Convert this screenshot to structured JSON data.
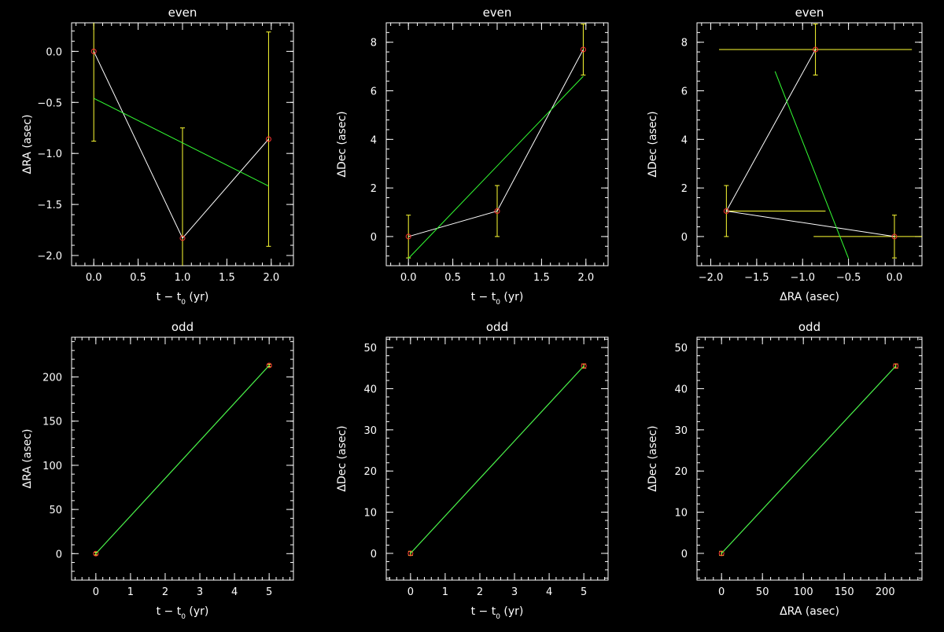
{
  "chart_data": [
    {
      "type": "line",
      "title": "even",
      "xlabel": "t − t0 (yr)",
      "ylabel": "ΔRA (asec)",
      "xlim": [
        -0.25,
        2.25
      ],
      "ylim": [
        -2.1,
        0.28
      ],
      "xticks": [
        0.0,
        0.5,
        1.0,
        1.5,
        2.0
      ],
      "xticklabels": [
        "0.0",
        "0.5",
        "1.0",
        "1.5",
        "2.0"
      ],
      "yticks": [
        0.0,
        -0.5,
        -1.0,
        -1.5,
        -2.0
      ],
      "yticklabels": [
        "0.0",
        "−0.5",
        "−1.0",
        "−1.5",
        "−2.0"
      ],
      "grid": false,
      "series": [
        {
          "style": "line-with-markers",
          "color": "#ffffff",
          "marker_color": "#ff3333",
          "errorbar_color": "#ffff33",
          "x": [
            0.0,
            1.0,
            1.97
          ],
          "y": [
            0.0,
            -1.83,
            -0.86
          ],
          "yerr": [
            0.88,
            1.08,
            1.05
          ]
        },
        {
          "style": "fit-line",
          "color": "#33ff33",
          "x": [
            0.0,
            1.97
          ],
          "y": [
            -0.46,
            -1.32
          ]
        }
      ]
    },
    {
      "type": "line",
      "title": "even",
      "xlabel": "t − t0 (yr)",
      "ylabel": "ΔDec (asec)",
      "xlim": [
        -0.25,
        2.25
      ],
      "ylim": [
        -1.2,
        8.8
      ],
      "xticks": [
        0.0,
        0.5,
        1.0,
        1.5,
        2.0
      ],
      "xticklabels": [
        "0.0",
        "0.5",
        "1.0",
        "1.5",
        "2.0"
      ],
      "yticks": [
        0,
        2,
        4,
        6,
        8
      ],
      "yticklabels": [
        "0",
        "2",
        "4",
        "6",
        "8"
      ],
      "grid": false,
      "series": [
        {
          "style": "line-with-markers",
          "color": "#ffffff",
          "marker_color": "#ff3333",
          "errorbar_color": "#ffff33",
          "x": [
            0.0,
            1.0,
            1.97
          ],
          "y": [
            0.0,
            1.05,
            7.7
          ],
          "yerr": [
            0.88,
            1.05,
            1.05
          ]
        },
        {
          "style": "fit-line",
          "color": "#33ff33",
          "x": [
            0.0,
            1.97
          ],
          "y": [
            -0.9,
            6.6
          ]
        }
      ]
    },
    {
      "type": "line",
      "title": "even",
      "xlabel": "ΔRA (asec)",
      "ylabel": "ΔDec (asec)",
      "xlim": [
        -2.15,
        0.3
      ],
      "ylim": [
        -1.2,
        8.8
      ],
      "xticks": [
        -2.0,
        -1.5,
        -1.0,
        -0.5,
        0.0
      ],
      "xticklabels": [
        "−2.0",
        "−1.5",
        "−1.0",
        "−0.5",
        "0.0"
      ],
      "yticks": [
        0,
        2,
        4,
        6,
        8
      ],
      "yticklabels": [
        "0",
        "2",
        "4",
        "6",
        "8"
      ],
      "grid": false,
      "series": [
        {
          "style": "line-with-markers",
          "color": "#ffffff",
          "marker_color": "#ff3333",
          "errorbar_color": "#ffff33",
          "x": [
            0.0,
            -1.83,
            -0.86
          ],
          "y": [
            0.0,
            1.05,
            7.7
          ],
          "xerr": [
            [
              0.88,
              0.3
            ],
            [
              0.0,
              1.08
            ],
            [
              1.05,
              1.05
            ]
          ],
          "yerr": [
            0.88,
            1.05,
            1.05
          ]
        },
        {
          "style": "fit-line",
          "color": "#33ff33",
          "x": [
            -1.3,
            -0.5
          ],
          "y": [
            6.8,
            -0.9
          ]
        }
      ]
    },
    {
      "type": "line",
      "title": "odd",
      "xlabel": "t − t0 (yr)",
      "ylabel": "ΔRA (asec)",
      "xlim": [
        -0.7,
        5.7
      ],
      "ylim": [
        -30,
        245
      ],
      "xticks": [
        0,
        1,
        2,
        3,
        4,
        5
      ],
      "xticklabels": [
        "0",
        "1",
        "2",
        "3",
        "4",
        "5"
      ],
      "yticks": [
        0,
        50,
        100,
        150,
        200
      ],
      "yticklabels": [
        "0",
        "50",
        "100",
        "150",
        "200"
      ],
      "grid": false,
      "series": [
        {
          "style": "line-with-markers",
          "color": "#ffffff",
          "marker_color": "#ff3333",
          "errorbar_color": "#ffff33",
          "x": [
            0.0,
            5.0
          ],
          "y": [
            0.0,
            213.0
          ],
          "yerr": [
            1.5,
            1.5
          ]
        },
        {
          "style": "fit-line",
          "color": "#33ff33",
          "x": [
            0.0,
            5.0
          ],
          "y": [
            0.0,
            213.0
          ]
        }
      ]
    },
    {
      "type": "line",
      "title": "odd",
      "xlabel": "t − t0 (yr)",
      "ylabel": "ΔDec (asec)",
      "xlim": [
        -0.7,
        5.7
      ],
      "ylim": [
        -6.5,
        52.5
      ],
      "xticks": [
        0,
        1,
        2,
        3,
        4,
        5
      ],
      "xticklabels": [
        "0",
        "1",
        "2",
        "3",
        "4",
        "5"
      ],
      "yticks": [
        0,
        10,
        20,
        30,
        40,
        50
      ],
      "yticklabels": [
        "0",
        "10",
        "20",
        "30",
        "40",
        "50"
      ],
      "grid": false,
      "series": [
        {
          "style": "line-with-markers",
          "color": "#ffffff",
          "marker_color": "#ff3333",
          "errorbar_color": "#ffff33",
          "x": [
            0.0,
            5.0
          ],
          "y": [
            0.0,
            45.5
          ],
          "yerr": [
            0.5,
            0.5
          ]
        },
        {
          "style": "fit-line",
          "color": "#33ff33",
          "x": [
            0.0,
            5.0
          ],
          "y": [
            0.0,
            45.5
          ]
        }
      ]
    },
    {
      "type": "line",
      "title": "odd",
      "xlabel": "ΔRA (asec)",
      "ylabel": "ΔDec (asec)",
      "xlim": [
        -30,
        245
      ],
      "ylim": [
        -6.5,
        52.5
      ],
      "xticks": [
        0,
        50,
        100,
        150,
        200
      ],
      "xticklabels": [
        "0",
        "50",
        "100",
        "150",
        "200"
      ],
      "yticks": [
        0,
        10,
        20,
        30,
        40,
        50
      ],
      "yticklabels": [
        "0",
        "10",
        "20",
        "30",
        "40",
        "50"
      ],
      "grid": false,
      "series": [
        {
          "style": "line-with-markers",
          "color": "#ffffff",
          "marker_color": "#ff3333",
          "errorbar_color": "#ffff33",
          "x": [
            0.0,
            213.0
          ],
          "y": [
            0.0,
            45.5
          ],
          "yerr": [
            0.5,
            0.5
          ]
        },
        {
          "style": "fit-line",
          "color": "#33ff33",
          "x": [
            0.0,
            213.0
          ],
          "y": [
            0.0,
            45.5
          ]
        }
      ]
    }
  ]
}
